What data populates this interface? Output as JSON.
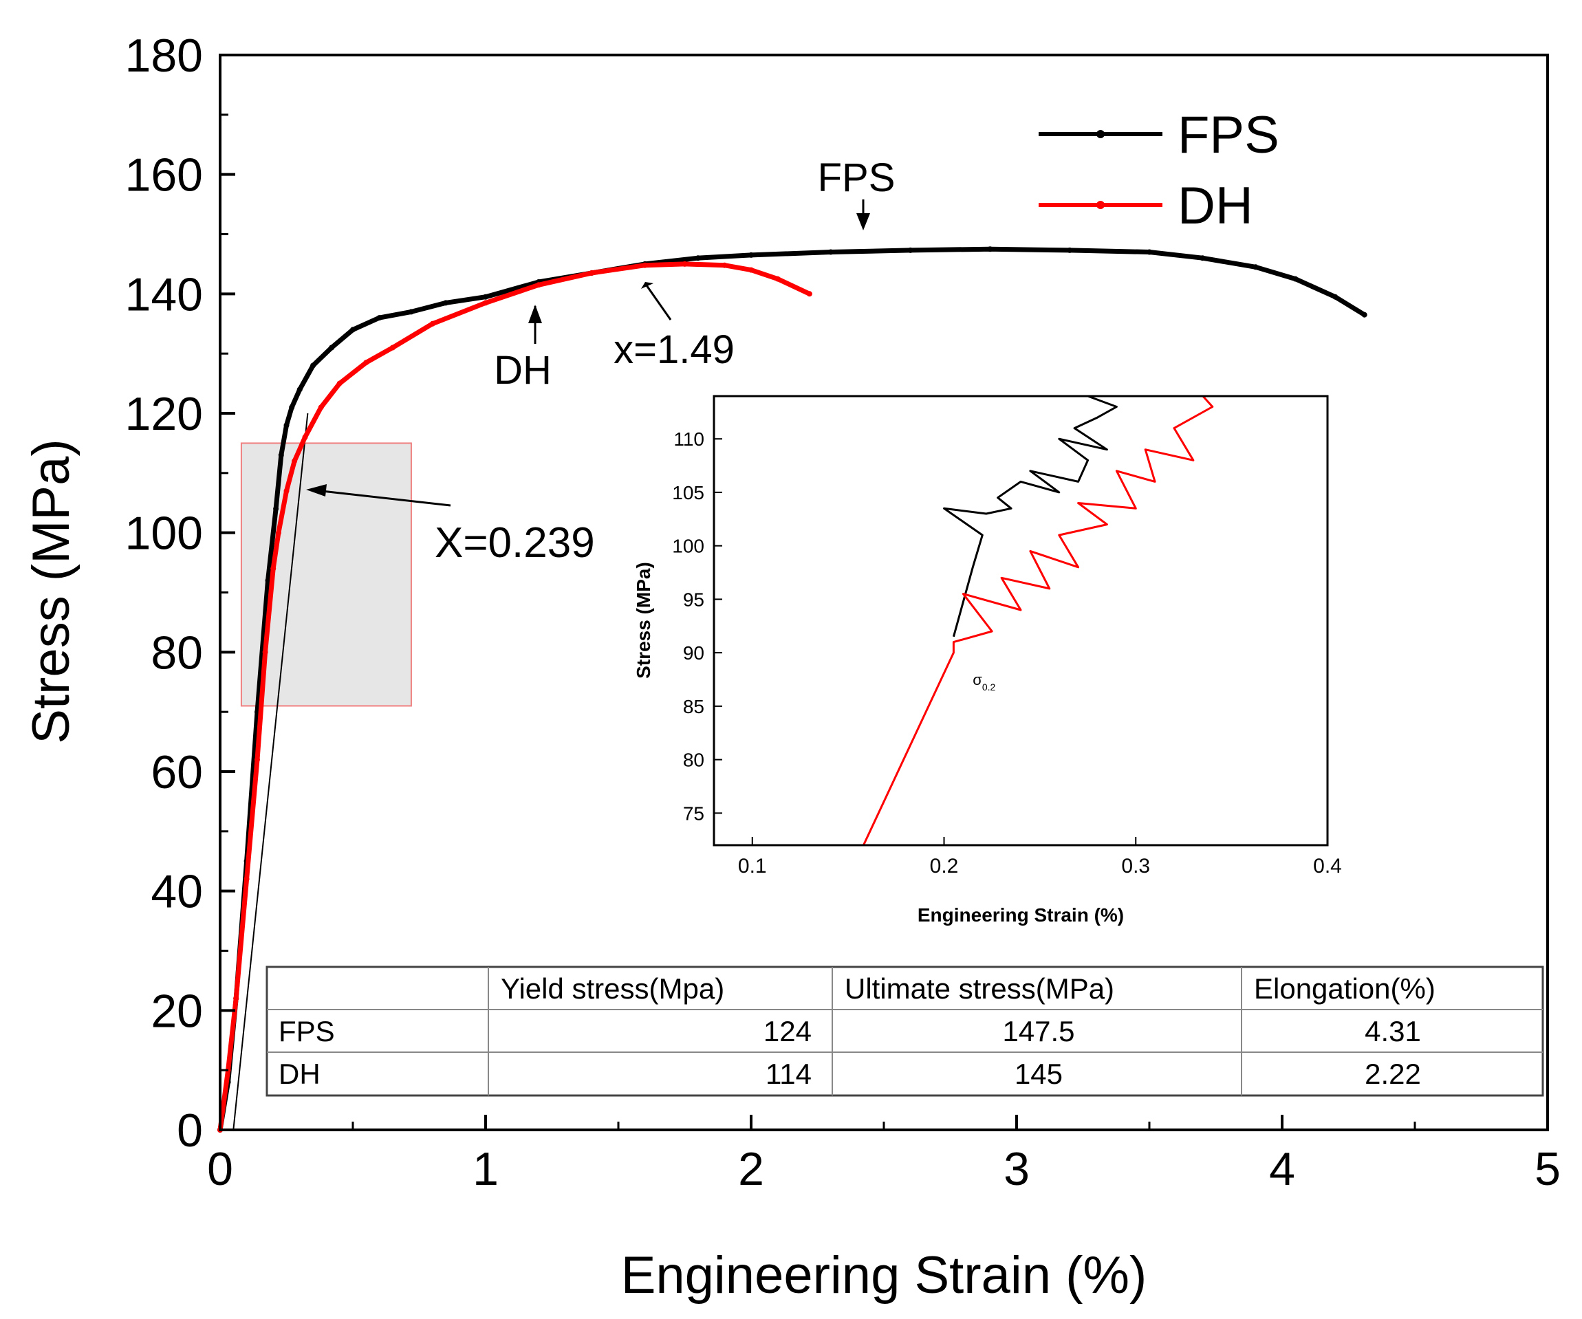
{
  "chart_data": {
    "type": "line",
    "xlabel": "Engineering Strain (%)",
    "ylabel": "Stress (MPa)",
    "xlim": [
      0,
      5
    ],
    "ylim": [
      0,
      180
    ],
    "xticks": [
      "0",
      "1",
      "2",
      "3",
      "4",
      "5"
    ],
    "yticks": [
      "0",
      "20",
      "40",
      "60",
      "80",
      "100",
      "120",
      "140",
      "160",
      "180"
    ],
    "legend_position": "top-right",
    "colors": {
      "FPS": "#000000",
      "DH": "#ff0000",
      "highlight_fill": "#e6e6e6",
      "highlight_edge": "#f08080"
    },
    "series": [
      {
        "name": "FPS",
        "x": [
          0.0,
          0.03,
          0.06,
          0.1,
          0.14,
          0.18,
          0.21,
          0.23,
          0.25,
          0.27,
          0.3,
          0.35,
          0.42,
          0.5,
          0.6,
          0.72,
          0.85,
          1.0,
          1.2,
          1.4,
          1.6,
          1.8,
          2.0,
          2.3,
          2.6,
          2.9,
          3.2,
          3.5,
          3.7,
          3.9,
          4.05,
          4.2,
          4.31
        ],
        "y": [
          0,
          8,
          22,
          45,
          70,
          92,
          104,
          113,
          118,
          121,
          124,
          128,
          131,
          134,
          136,
          137,
          138.5,
          139.5,
          142,
          143.5,
          145,
          146,
          146.5,
          147,
          147.3,
          147.5,
          147.3,
          147,
          146,
          144.5,
          142.5,
          139.5,
          136.5
        ]
      },
      {
        "name": "DH",
        "x": [
          0.0,
          0.03,
          0.06,
          0.1,
          0.14,
          0.17,
          0.2,
          0.22,
          0.25,
          0.28,
          0.32,
          0.38,
          0.45,
          0.55,
          0.65,
          0.8,
          1.0,
          1.2,
          1.4,
          1.6,
          1.75,
          1.9,
          2.0,
          2.1,
          2.22
        ],
        "y": [
          0,
          10,
          22,
          42,
          62,
          80,
          94,
          100,
          107,
          112,
          116,
          121,
          125,
          128.5,
          131,
          135,
          138.5,
          141.5,
          143.5,
          144.8,
          145,
          144.8,
          144,
          142.5,
          140
        ]
      }
    ],
    "offset_line": {
      "x": [
        0.05,
        0.33
      ],
      "y": [
        0,
        120
      ]
    },
    "highlight_box": {
      "x": [
        0.08,
        0.72
      ],
      "y": [
        71,
        115
      ]
    },
    "annotations": [
      {
        "text": "FPS",
        "x": 2.4,
        "y": 159
      },
      {
        "text": "DH",
        "x": 1.15,
        "y": 125
      },
      {
        "text": "x=1.49",
        "x": 1.69,
        "y": 127
      },
      {
        "text": "X=0.239",
        "x": 0.84,
        "y": 98
      }
    ],
    "inset": {
      "xlabel": "Engineering Strain (%)",
      "ylabel": "Stress (MPa)",
      "xlim": [
        0.08,
        0.4
      ],
      "ylim": [
        72,
        114
      ],
      "xticks": [
        "0.1",
        "0.2",
        "0.3",
        "0.4"
      ],
      "yticks": [
        "75",
        "80",
        "85",
        "90",
        "95",
        "100",
        "105",
        "110"
      ],
      "annotation": {
        "text": "σ",
        "sub": "0.2",
        "x": 0.215,
        "y": 87
      },
      "series": [
        {
          "name": "FPS",
          "x": [
            0.205,
            0.215,
            0.22,
            0.2,
            0.222,
            0.235,
            0.228,
            0.24,
            0.26,
            0.245,
            0.27,
            0.275,
            0.26,
            0.285,
            0.268,
            0.28,
            0.29,
            0.275
          ],
          "y": [
            91.5,
            98,
            101,
            103.5,
            103,
            103.5,
            104.5,
            106,
            105,
            107,
            106,
            108,
            110,
            109,
            111,
            112,
            113,
            114
          ]
        },
        {
          "name": "DH",
          "x": [
            0.158,
            0.205,
            0.205,
            0.225,
            0.21,
            0.24,
            0.23,
            0.255,
            0.245,
            0.27,
            0.26,
            0.285,
            0.27,
            0.3,
            0.29,
            0.31,
            0.305,
            0.33,
            0.32,
            0.34,
            0.335
          ],
          "y": [
            72,
            90,
            91,
            92,
            95.5,
            94,
            97,
            96,
            99.5,
            98,
            101,
            102,
            104,
            103.5,
            107,
            106,
            109,
            108,
            111,
            113,
            114
          ]
        }
      ]
    },
    "table": {
      "headers": [
        "",
        "Yield stress(Mpa)",
        "Ultimate stress(MPa)",
        "Elongation(%)"
      ],
      "rows": [
        [
          "FPS",
          "124",
          "147.5",
          "4.31"
        ],
        [
          "DH",
          "114",
          "145",
          "2.22"
        ]
      ]
    }
  }
}
